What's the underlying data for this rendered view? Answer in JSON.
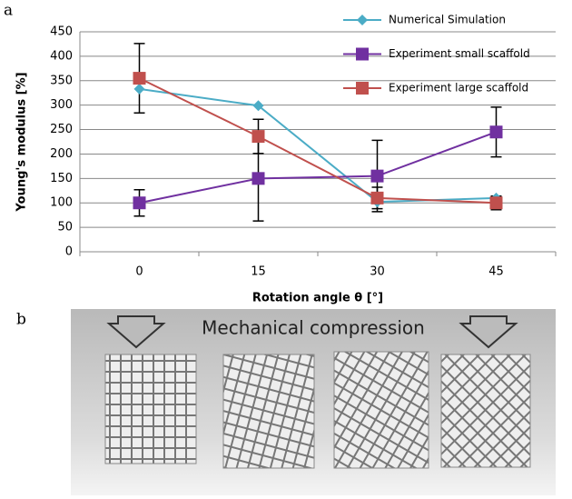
{
  "panel_a_label": "a",
  "panel_b_label": "b",
  "chart_data": {
    "type": "line",
    "ylabel": "Young's modulus [%]",
    "xlabel": "Rotation angle θ [°]",
    "categories": [
      "0",
      "15",
      "30",
      "45"
    ],
    "ylim": [
      0,
      450
    ],
    "yticks": [
      0,
      50,
      100,
      150,
      200,
      250,
      300,
      350,
      400,
      450
    ],
    "grid": true,
    "legend": "top-right",
    "series": [
      {
        "name": "Numerical Simulation",
        "color": "#4bacc6",
        "marker": "diamond",
        "values": [
          333,
          299,
          102,
          110
        ]
      },
      {
        "name": "Experiment small scaffold",
        "color": "#7030a0",
        "marker": "square",
        "values": [
          100,
          150,
          155,
          245
        ],
        "errors": [
          27,
          87,
          73,
          51
        ]
      },
      {
        "name": "Experiment large scaffold",
        "color": "#c0504d",
        "marker": "square",
        "values": [
          355,
          236,
          110,
          100
        ],
        "errors": [
          71,
          35,
          22,
          14
        ]
      }
    ]
  },
  "photo": {
    "caption": "Mechanical compression"
  }
}
